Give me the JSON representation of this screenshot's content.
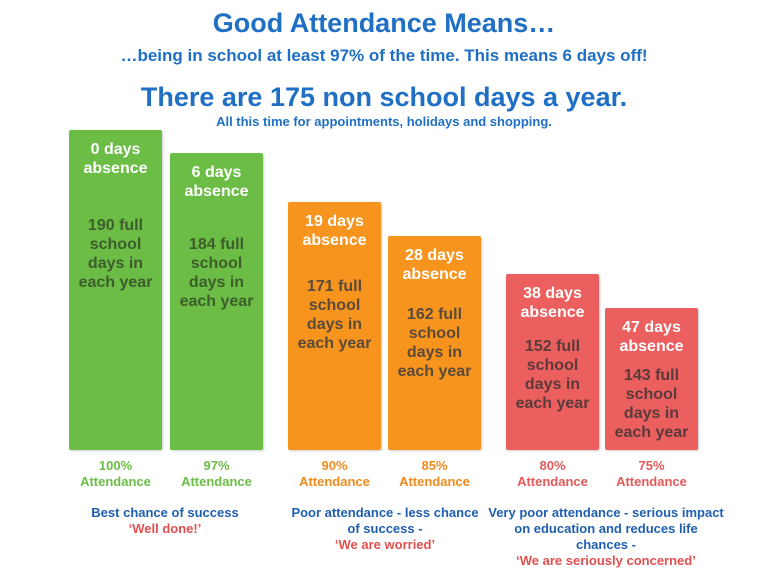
{
  "header": {
    "title": "Good Attendance Means…",
    "subtitle": "…being in school at least 97% of the time. This means 6 days off!",
    "headline": "There are 175 non school days a year.",
    "subheadline": "All this time for appointments, holidays and shopping."
  },
  "colors": {
    "green": "#6bbd45",
    "orange": "#f7941d",
    "red": "#ec5f5f",
    "blue": "#1f6fc5"
  },
  "chart_data": {
    "type": "bar",
    "title": "Good Attendance Means…",
    "categories": [
      "100% Attendance",
      "97% Attendance",
      "90% Attendance",
      "85% Attendance",
      "80% Attendance",
      "75% Attendance"
    ],
    "values": [
      190,
      184,
      171,
      162,
      152,
      143
    ],
    "absence_days": [
      0,
      6,
      19,
      28,
      38,
      47
    ],
    "attendance_percent": [
      100,
      97,
      90,
      85,
      80,
      75
    ],
    "bars": [
      {
        "absence": "0 days absence",
        "school": "190 full school days in each year",
        "pct": "100%",
        "att": "Attendance",
        "group": "green"
      },
      {
        "absence": "6 days absence",
        "school": "184 full school days in each year",
        "pct": "97%",
        "att": "Attendance",
        "group": "green"
      },
      {
        "absence": "19 days absence",
        "school": "171 full school days in each year",
        "pct": "90%",
        "att": "Attendance",
        "group": "orange"
      },
      {
        "absence": "28 days absence",
        "school": "162 full school days in each year",
        "pct": "85%",
        "att": "Attendance",
        "group": "orange"
      },
      {
        "absence": "38 days absence",
        "school": "152 full school days in each year",
        "pct": "80%",
        "att": "Attendance",
        "group": "red"
      },
      {
        "absence": "47 days absence",
        "school": "143 full school days in each year",
        "pct": "75%",
        "att": "Attendance",
        "group": "red"
      }
    ],
    "captions": [
      {
        "text": "Best chance of success",
        "quote": "‘Well done!’"
      },
      {
        "text": "Poor attendance - less chance of success -",
        "quote": "‘We are worried’"
      },
      {
        "text": "Very poor attendance - serious impact on education and reduces life chances -",
        "quote": "‘We are seriously concerned’"
      }
    ]
  }
}
